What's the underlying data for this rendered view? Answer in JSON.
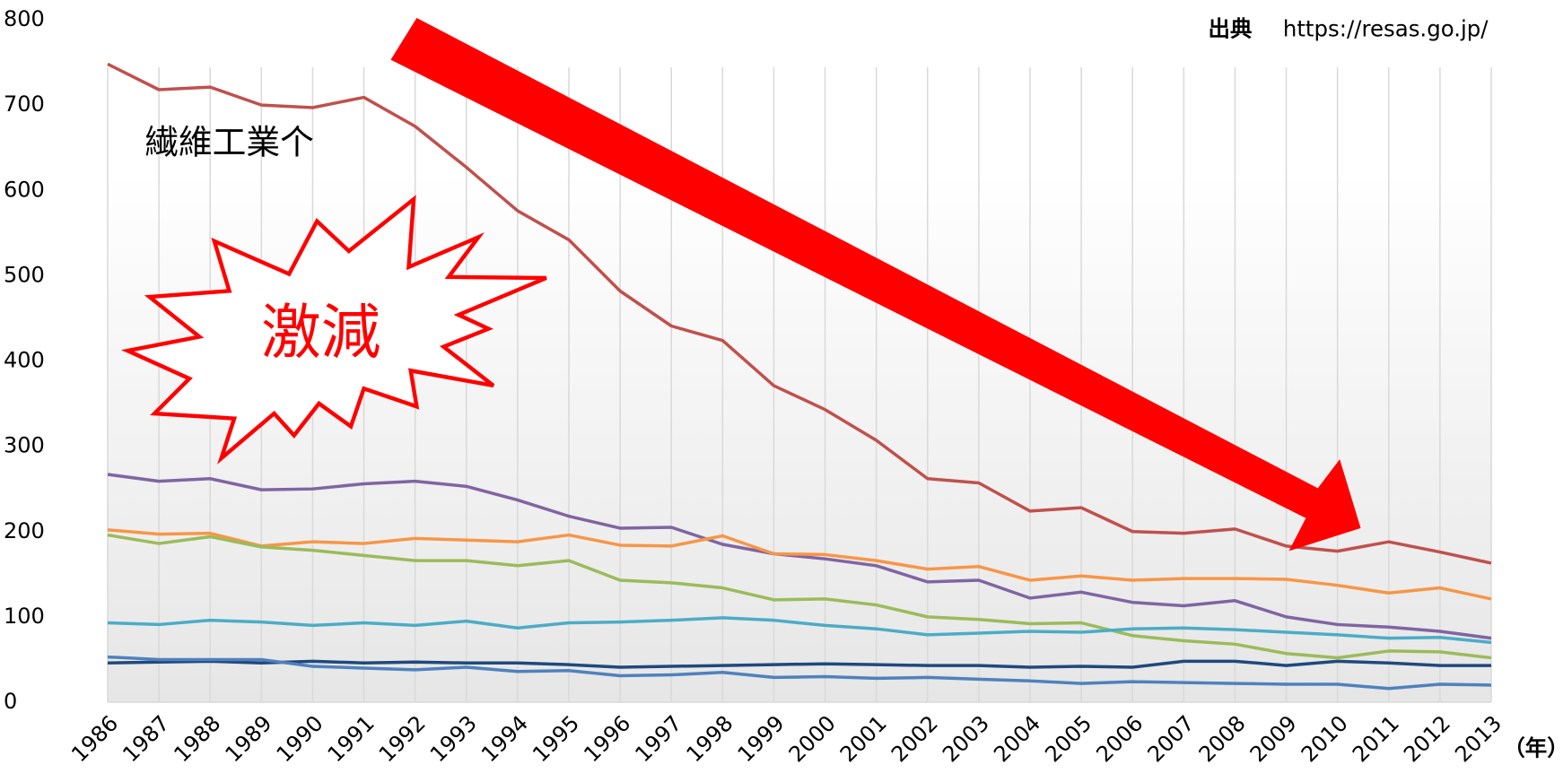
{
  "chart_data": {
    "type": "line",
    "annotations": {
      "source_label": "出典",
      "source_url": "https://resas.go.jp/",
      "industry": "繊維工業个",
      "callout": "激減",
      "x_unit": "（年）"
    },
    "categories": [
      "1986",
      "1987",
      "1988",
      "1989",
      "1990",
      "1991",
      "1992",
      "1993",
      "1994",
      "1995",
      "1996",
      "1997",
      "1998",
      "1999",
      "2000",
      "2001",
      "2002",
      "2003",
      "2004",
      "2005",
      "2006",
      "2007",
      "2008",
      "2009",
      "2010",
      "2011",
      "2012",
      "2013"
    ],
    "series": [
      {
        "color": "#c0504d",
        "values": [
          748,
          718,
          721,
          700,
          697,
          709,
          675,
          627,
          576,
          542,
          482,
          441,
          424,
          371,
          343,
          307,
          262,
          257,
          224,
          228,
          200,
          198,
          203,
          183,
          177,
          188,
          176,
          163
        ]
      },
      {
        "color": "#8064a2",
        "values": [
          267,
          259,
          262,
          249,
          250,
          256,
          259,
          253,
          237,
          218,
          204,
          205,
          185,
          174,
          168,
          160,
          141,
          143,
          122,
          129,
          117,
          113,
          119,
          100,
          91,
          88,
          83,
          75
        ]
      },
      {
        "color": "#f79646",
        "values": [
          202,
          197,
          198,
          183,
          188,
          186,
          192,
          190,
          188,
          196,
          184,
          183,
          195,
          174,
          173,
          166,
          156,
          159,
          143,
          148,
          143,
          145,
          145,
          144,
          137,
          128,
          134,
          121
        ]
      },
      {
        "color": "#9bbb59",
        "values": [
          196,
          186,
          194,
          182,
          178,
          172,
          166,
          166,
          160,
          166,
          143,
          140,
          134,
          120,
          121,
          114,
          100,
          97,
          92,
          93,
          78,
          72,
          68,
          57,
          52,
          60,
          59,
          52
        ]
      },
      {
        "color": "#4bacc6",
        "values": [
          93,
          91,
          96,
          94,
          90,
          93,
          90,
          95,
          87,
          93,
          94,
          96,
          99,
          96,
          90,
          86,
          79,
          81,
          83,
          82,
          86,
          87,
          85,
          82,
          79,
          75,
          76,
          70
        ]
      },
      {
        "color": "#1f497d",
        "values": [
          46,
          47,
          48,
          46,
          48,
          46,
          47,
          46,
          46,
          44,
          41,
          42,
          43,
          44,
          45,
          44,
          43,
          43,
          41,
          42,
          41,
          48,
          48,
          43,
          48,
          46,
          43,
          43
        ]
      },
      {
        "color": "#4f81bd",
        "values": [
          53,
          50,
          50,
          50,
          42,
          40,
          38,
          41,
          36,
          37,
          31,
          32,
          35,
          29,
          30,
          28,
          29,
          27,
          25,
          22,
          24,
          23,
          22,
          21,
          21,
          16,
          21,
          20
        ]
      }
    ],
    "ylim": [
      0,
      800
    ],
    "yticks": [
      0,
      100,
      200,
      300,
      400,
      500,
      600,
      700,
      800
    ],
    "grid": true
  }
}
